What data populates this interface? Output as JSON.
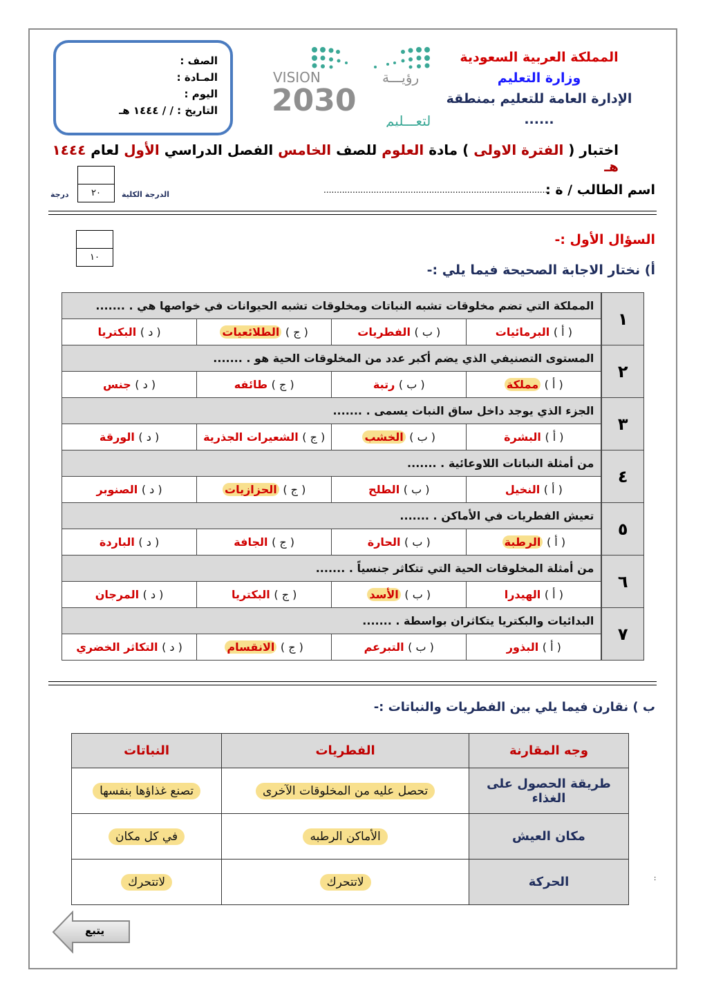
{
  "header": {
    "kingdom": "المملكة العربية السعودية",
    "ministry": "وزارة التعليم",
    "directorate": "الإدارة العامة للتعليم بمنطقة ......"
  },
  "logo": {
    "vision": "VISION",
    "vision_ar": "رؤيـــة",
    "year": "2030",
    "ministry": "وزارة التعـــليم"
  },
  "info": {
    "grade": "الصف :",
    "subject": "المـادة :",
    "day": "اليوم  :",
    "date": "التاريخ :    /    /  ١٤٤٤ هـ"
  },
  "title": {
    "p1": "اختبار ( ",
    "p2": "الفترة الاولى",
    "p3": " ) مادة ",
    "p4": "العلوم",
    "p5": " للصف ",
    "p6": "الخامس",
    "p7": " الفصل الدراسي ",
    "p8": "الأول",
    "p9": " لعام ",
    "p10": "١٤٤٤ هـ"
  },
  "student": {
    "label": "اسم الطالب / ة :",
    "dots": "......................................................................................................"
  },
  "total": {
    "label": "الدرجة الكلية",
    "value": "٢٠",
    "unit": "درجة"
  },
  "q1": {
    "heading": "السؤال الأول :-",
    "score": "١٠",
    "sub": "أ)  نختار الاجابة الصحيحة فيما يلي :-"
  },
  "colors": {
    "accent_red": "#d00000",
    "navy": "#1f2d5c",
    "highlight": "#f8e08e",
    "cell_grey": "#dadada"
  },
  "questions": [
    {
      "num": "١",
      "text": "المملكة التي تضم مخلوقات تشبه النباتات ومخلوقات تشبه الحيوانات في خواصها هي . .......",
      "options": [
        {
          "label": "( أ )",
          "text": "البرمائيات"
        },
        {
          "label": "( ب )",
          "text": "الفطريات"
        },
        {
          "label": "( ج )",
          "text": "الطلائعيات",
          "correct": true
        },
        {
          "label": "( د )",
          "text": "البكتريا"
        }
      ]
    },
    {
      "num": "٢",
      "text": "المستوى التصنيفي الذي يضم أكبر عدد من المخلوقات الحية هو . .......",
      "options": [
        {
          "label": "( أ )",
          "text": "مملكة",
          "correct": true
        },
        {
          "label": "( ب )",
          "text": "رتبة"
        },
        {
          "label": "( ج )",
          "text": "طائفه"
        },
        {
          "label": "( د )",
          "text": "جنس"
        }
      ]
    },
    {
      "num": "٣",
      "text": "الجزء الذي يوجد داخل ساق النبات يسمى . .......",
      "options": [
        {
          "label": "( أ )",
          "text": "البشرة"
        },
        {
          "label": "( ب )",
          "text": "الخشب",
          "correct": true
        },
        {
          "label": "( ج )",
          "text": "الشعيرات الجذرية"
        },
        {
          "label": "( د )",
          "text": "الورقة"
        }
      ]
    },
    {
      "num": "٤",
      "text": "من أمثلة النباتات اللاوعائية . .......",
      "options": [
        {
          "label": "( أ )",
          "text": "النخيل"
        },
        {
          "label": "( ب )",
          "text": "الطلح"
        },
        {
          "label": "( ج )",
          "text": "الحزازيات",
          "correct": true
        },
        {
          "label": "( د )",
          "text": "الصنوبر"
        }
      ]
    },
    {
      "num": "٥",
      "text": "تعيش الفطريات في الأماكن . .......",
      "options": [
        {
          "label": "( أ )",
          "text": "الرطبة",
          "correct": true
        },
        {
          "label": "( ب )",
          "text": "الحارة"
        },
        {
          "label": "( ج )",
          "text": "الجافة"
        },
        {
          "label": "( د )",
          "text": "الباردة"
        }
      ]
    },
    {
      "num": "٦",
      "text": "من أمثلة المخلوقات الحية التي تتكاثر جنسياً . .......",
      "options": [
        {
          "label": "( أ )",
          "text": "الهيدرا"
        },
        {
          "label": "( ب )",
          "text": "الأسد",
          "correct": true
        },
        {
          "label": "( ج )",
          "text": "البكتريا"
        },
        {
          "label": "( د )",
          "text": "المرجان"
        }
      ]
    },
    {
      "num": "٧",
      "text": "البدائيات والبكتريا يتكاثران بواسطة . .......",
      "options": [
        {
          "label": "( أ )",
          "text": "البذور"
        },
        {
          "label": "( ب )",
          "text": "التبرعم"
        },
        {
          "label": "( ج )",
          "text": "الانقسام",
          "correct": true
        },
        {
          "label": "( د )",
          "text": "التكاثر الخضري"
        }
      ]
    }
  ],
  "partb": {
    "heading": "ب ) نقارن فيما يلي بين الفطريات والنباتات :-",
    "columns": [
      "وجه المقارنة",
      "الفطريات",
      "النباتات"
    ],
    "rows": [
      [
        "طريقة الحصول على الغذاء",
        "تحصل عليه من المخلوقات الآخرى",
        "تصنع غذاؤها بنفسها"
      ],
      [
        "مكان العيش",
        "الأماكن الرطبه",
        "في كل مكان"
      ],
      [
        "الحركة",
        "لاتتحرك",
        "لاتتحرك"
      ]
    ]
  },
  "footer": {
    "next": "يتبع"
  }
}
